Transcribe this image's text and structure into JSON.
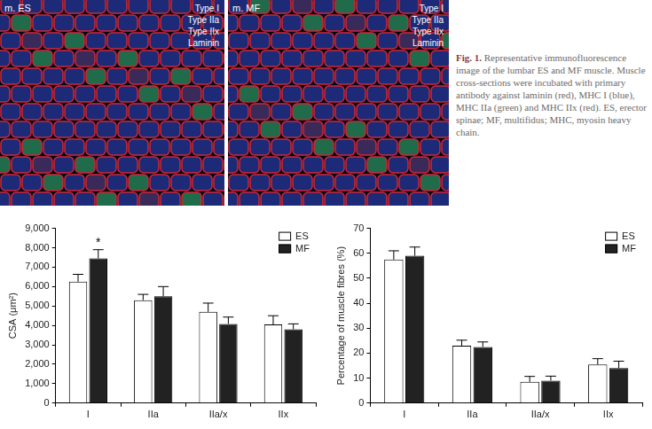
{
  "figure": {
    "images": [
      {
        "title": "m. ES",
        "labels": [
          "Type I",
          "Type IIa",
          "Type IIx",
          "Laminin"
        ]
      },
      {
        "title": "m. MF",
        "labels": [
          "Type I",
          "Type IIa",
          "Type IIx",
          "Laminin"
        ]
      }
    ],
    "caption_label": "Fig. 1.",
    "caption": "Representative immunofluorescence image of the lumbar ES and MF muscle. Muscle cross-sections were incubated with primary antibody against laminin (red), MHC I (blue), MHC IIa (green) and MHC IIx (red). ES, erector spinae; MF, multifidus; MHC, myosin heavy chain."
  },
  "chart_data": [
    {
      "type": "bar",
      "y_label": "CSA (μm²)",
      "categories": [
        "I",
        "IIa",
        "IIa/x",
        "IIx"
      ],
      "series": [
        {
          "name": "ES",
          "color": "#ffffff",
          "values": [
            6250,
            5300,
            4700,
            4050
          ],
          "errors": [
            380,
            300,
            450,
            450
          ]
        },
        {
          "name": "MF",
          "color": "#222222",
          "values": [
            7450,
            5500,
            4080,
            3800
          ],
          "errors": [
            450,
            500,
            350,
            280
          ]
        }
      ],
      "ylim": [
        0,
        9000
      ],
      "yticks": [
        0,
        {
          "value": 1000,
          "label": "1,000"
        },
        {
          "value": 2000,
          "label": "2,000"
        },
        {
          "value": 3000,
          "label": "3,000"
        },
        {
          "value": 4000,
          "label": "4,000"
        },
        {
          "value": 5000,
          "label": "5,000"
        },
        {
          "value": 6000,
          "label": "6,000"
        },
        {
          "value": 7000,
          "label": "7,000"
        },
        {
          "value": 8000,
          "label": "8,000"
        },
        {
          "value": 9000,
          "label": "9,000"
        }
      ],
      "annotations": [
        {
          "text": "*",
          "category": "I",
          "series": "MF"
        }
      ],
      "grid": false,
      "legend": "upper right"
    },
    {
      "type": "bar",
      "y_label": "Percentage of muscle fibres (%)",
      "categories": [
        "I",
        "IIa",
        "IIa/x",
        "IIx"
      ],
      "series": [
        {
          "name": "ES",
          "color": "#ffffff",
          "values": [
            57.5,
            23,
            8.5,
            15.5
          ],
          "errors": [
            3.5,
            2.2,
            2.2,
            2.3
          ]
        },
        {
          "name": "MF",
          "color": "#222222",
          "values": [
            59,
            22.5,
            9,
            14
          ],
          "errors": [
            3.5,
            2,
            1.8,
            2.8
          ]
        }
      ],
      "ylim": [
        0,
        70
      ],
      "yticks": [
        0,
        10,
        20,
        30,
        40,
        50,
        60,
        70
      ],
      "grid": false,
      "legend": "upper right"
    }
  ]
}
